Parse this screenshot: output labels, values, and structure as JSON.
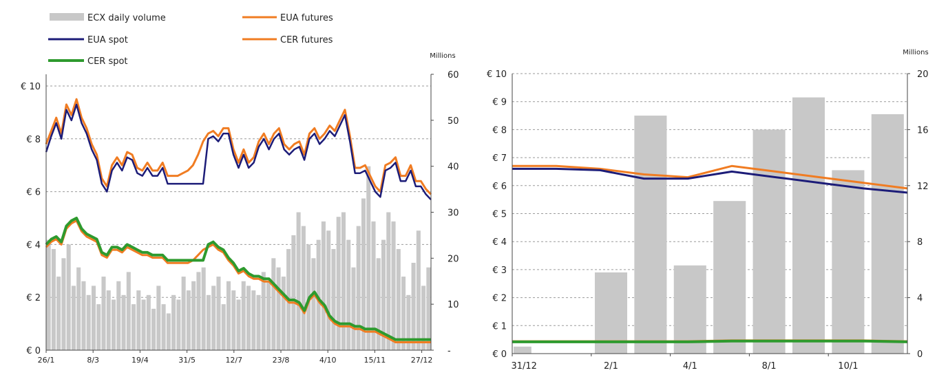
{
  "legend": {
    "ecx_volume": "ECX daily volume",
    "eua_spot": "EUA spot",
    "cer_spot": "CER spot",
    "eua_futures": "EUA futures",
    "cer_futures": "CER futures"
  },
  "colors": {
    "volume": "#c8c8c8",
    "eua_spot": "#1c1c78",
    "cer_spot": "#2e9a2e",
    "eua_futures": "#f07c22",
    "cer_futures": "#f07c22",
    "grid": "#9a9a9a"
  },
  "chart_data": [
    {
      "type": "line",
      "y_left_ticks": [
        "€ 0",
        "€ 2",
        "€ 4",
        "€ 6",
        "€ 8",
        "€ 10"
      ],
      "ylim_left": [
        0,
        10
      ],
      "y_right_label": "Millions",
      "y_right_ticks": [
        "-",
        "10",
        "20",
        "30",
        "40",
        "50",
        "60"
      ],
      "ylim_right": [
        0,
        60
      ],
      "x_ticks": [
        "26/1",
        "8/3",
        "19/4",
        "31/5",
        "12/7",
        "23/8",
        "4/10",
        "15/11",
        "27/12"
      ],
      "grid": "horizontal dashed",
      "legend_position": "top-left",
      "series": [
        {
          "name": "EUA spot",
          "axis": "left",
          "values": [
            7.5,
            8.1,
            8.6,
            8.0,
            9.1,
            8.7,
            9.3,
            8.6,
            8.2,
            7.6,
            7.2,
            6.3,
            6.0,
            6.8,
            7.1,
            6.8,
            7.3,
            7.2,
            6.7,
            6.6,
            6.9,
            6.6,
            6.6,
            6.9,
            6.3,
            6.3,
            6.3,
            6.3,
            6.3,
            6.3,
            6.3,
            6.3,
            8.0,
            8.1,
            7.9,
            8.2,
            8.2,
            7.4,
            6.9,
            7.4,
            6.9,
            7.1,
            7.7,
            8.0,
            7.6,
            8.0,
            8.2,
            7.6,
            7.4,
            7.6,
            7.7,
            7.2,
            8.0,
            8.2,
            7.8,
            8.0,
            8.3,
            8.1,
            8.5,
            8.9,
            7.9,
            6.7,
            6.7,
            6.8,
            6.4,
            6.0,
            5.8,
            6.8,
            6.9,
            7.1,
            6.4,
            6.4,
            6.8,
            6.2,
            6.2,
            5.9,
            5.7
          ]
        },
        {
          "name": "EUA futures",
          "axis": "left",
          "values": [
            7.8,
            8.3,
            8.8,
            8.2,
            9.3,
            8.9,
            9.5,
            8.8,
            8.4,
            7.8,
            7.4,
            6.5,
            6.2,
            7.0,
            7.3,
            7.0,
            7.5,
            7.4,
            6.9,
            6.8,
            7.1,
            6.8,
            6.8,
            7.1,
            6.6,
            6.6,
            6.6,
            6.7,
            6.8,
            7.0,
            7.4,
            7.9,
            8.2,
            8.3,
            8.1,
            8.4,
            8.4,
            7.6,
            7.1,
            7.6,
            7.1,
            7.3,
            7.9,
            8.2,
            7.8,
            8.2,
            8.4,
            7.8,
            7.6,
            7.8,
            7.9,
            7.4,
            8.2,
            8.4,
            8.0,
            8.2,
            8.5,
            8.3,
            8.7,
            9.1,
            8.1,
            6.9,
            6.9,
            7.0,
            6.6,
            6.2,
            6.0,
            7.0,
            7.1,
            7.3,
            6.6,
            6.6,
            7.0,
            6.4,
            6.4,
            6.1,
            5.9
          ]
        },
        {
          "name": "CER spot",
          "axis": "left",
          "values": [
            4.0,
            4.2,
            4.3,
            4.1,
            4.7,
            4.9,
            5.0,
            4.6,
            4.4,
            4.3,
            4.2,
            3.7,
            3.6,
            3.9,
            3.9,
            3.8,
            4.0,
            3.9,
            3.8,
            3.7,
            3.7,
            3.6,
            3.6,
            3.6,
            3.4,
            3.4,
            3.4,
            3.4,
            3.4,
            3.4,
            3.4,
            3.4,
            4.0,
            4.1,
            3.9,
            3.8,
            3.5,
            3.3,
            3.0,
            3.1,
            2.9,
            2.8,
            2.8,
            2.7,
            2.7,
            2.5,
            2.3,
            2.1,
            1.9,
            1.9,
            1.8,
            1.5,
            2.0,
            2.2,
            1.9,
            1.7,
            1.3,
            1.1,
            1.0,
            1.0,
            1.0,
            0.9,
            0.9,
            0.8,
            0.8,
            0.8,
            0.7,
            0.6,
            0.5,
            0.4,
            0.4,
            0.4,
            0.4,
            0.4,
            0.4,
            0.4,
            0.4
          ]
        },
        {
          "name": "CER futures",
          "axis": "left",
          "values": [
            3.9,
            4.1,
            4.2,
            4.0,
            4.6,
            4.8,
            4.9,
            4.5,
            4.3,
            4.2,
            4.1,
            3.6,
            3.5,
            3.8,
            3.8,
            3.7,
            3.9,
            3.8,
            3.7,
            3.6,
            3.6,
            3.5,
            3.5,
            3.5,
            3.3,
            3.3,
            3.3,
            3.3,
            3.3,
            3.4,
            3.6,
            3.8,
            3.9,
            4.0,
            3.8,
            3.7,
            3.4,
            3.2,
            2.9,
            3.0,
            2.8,
            2.7,
            2.7,
            2.6,
            2.6,
            2.4,
            2.2,
            2.0,
            1.8,
            1.8,
            1.7,
            1.4,
            1.9,
            2.1,
            1.8,
            1.6,
            1.2,
            1.0,
            0.9,
            0.9,
            0.9,
            0.8,
            0.8,
            0.7,
            0.7,
            0.7,
            0.6,
            0.5,
            0.4,
            0.3,
            0.3,
            0.3,
            0.3,
            0.3,
            0.3,
            0.3,
            0.3
          ]
        },
        {
          "name": "ECX daily volume",
          "axis": "right",
          "kind": "bar",
          "values": [
            24,
            22,
            16,
            20,
            23,
            14,
            18,
            15,
            12,
            14,
            10,
            16,
            13,
            11,
            15,
            12,
            17,
            10,
            13,
            11,
            12,
            9,
            14,
            10,
            8,
            12,
            11,
            16,
            13,
            15,
            17,
            18,
            12,
            14,
            16,
            10,
            15,
            13,
            11,
            15,
            14,
            13,
            12,
            17,
            15,
            20,
            18,
            16,
            22,
            25,
            30,
            27,
            23,
            20,
            24,
            28,
            26,
            22,
            29,
            30,
            24,
            18,
            27,
            33,
            40,
            28,
            20,
            24,
            30,
            28,
            22,
            16,
            12,
            19,
            26,
            14,
            18
          ]
        }
      ]
    },
    {
      "type": "bar",
      "y_left_ticks": [
        "€ 0",
        "€ 1",
        "€ 2",
        "€ 3",
        "€ 4",
        "€ 5",
        "€ 6",
        "€ 7",
        "€ 8",
        "€ 9",
        "€ 10"
      ],
      "ylim_left": [
        0,
        10
      ],
      "y_right_label": "Millions",
      "y_right_ticks": [
        "0",
        "4",
        "8",
        "12",
        "16",
        "20"
      ],
      "ylim_right": [
        0,
        20
      ],
      "x_ticks": [
        "31/12",
        "2/1",
        "4/1",
        "8/1",
        "10/1"
      ],
      "grid": "horizontal dashed",
      "series": [
        {
          "name": "ECX daily volume",
          "axis": "right",
          "kind": "bar",
          "values": [
            0.5,
            0,
            5.8,
            17.0,
            6.3,
            10.9,
            16.0,
            18.3,
            13.1,
            17.1
          ]
        },
        {
          "name": "EUA futures",
          "axis": "left",
          "values": [
            6.7,
            6.7,
            6.6,
            6.4,
            6.3,
            6.7,
            6.5,
            6.3,
            6.1,
            5.9
          ]
        },
        {
          "name": "EUA spot",
          "axis": "left",
          "values": [
            6.6,
            6.6,
            6.55,
            6.25,
            6.25,
            6.5,
            6.3,
            6.1,
            5.9,
            5.75
          ]
        },
        {
          "name": "CER futures",
          "axis": "left",
          "values": [
            0.44,
            0.44,
            0.44,
            0.44,
            0.44,
            0.47,
            0.47,
            0.47,
            0.47,
            0.44
          ]
        },
        {
          "name": "CER spot",
          "axis": "left",
          "values": [
            0.42,
            0.42,
            0.42,
            0.42,
            0.42,
            0.45,
            0.45,
            0.45,
            0.45,
            0.42
          ]
        }
      ]
    }
  ]
}
